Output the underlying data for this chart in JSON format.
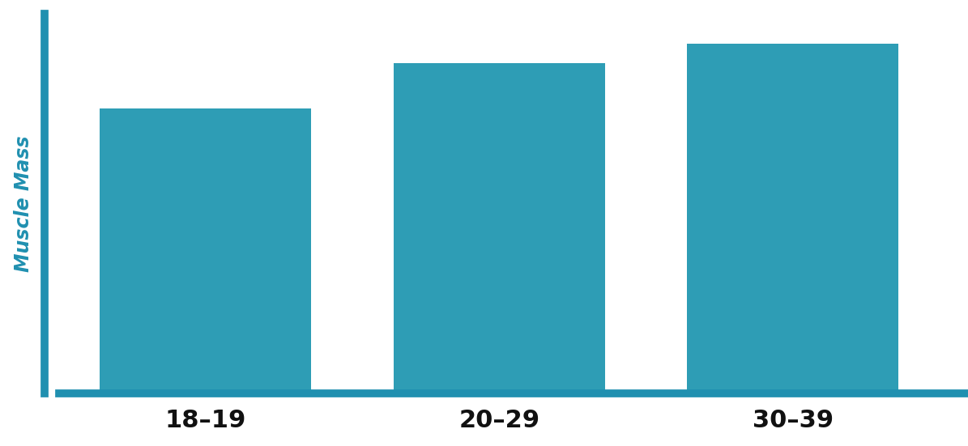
{
  "categories": [
    "18–19",
    "20–29",
    "30–39"
  ],
  "values": [
    75,
    87,
    92
  ],
  "bar_color": "#2e9db5",
  "axis_color": "#2090b0",
  "ylabel": "Muscle Mass",
  "ylabel_color": "#2090b0",
  "ylabel_fontsize": 17,
  "tick_label_fontsize": 22,
  "tick_label_color": "#111111",
  "ylim": [
    0,
    100
  ],
  "xlim": [
    -0.55,
    2.55
  ],
  "bar_width": 0.72,
  "background_color": "#ffffff",
  "spine_linewidth": 7,
  "bottom_spine_extend": 2.7
}
